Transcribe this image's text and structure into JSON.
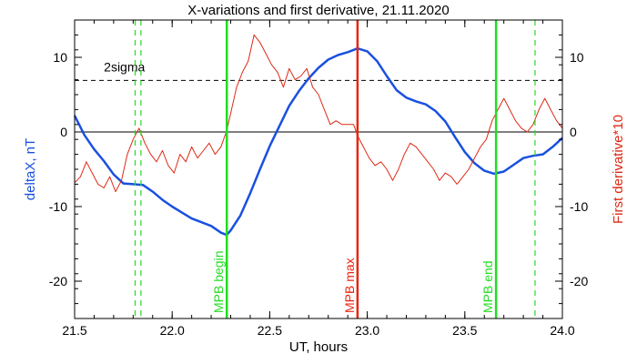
{
  "chart_data": {
    "type": "line",
    "title": "X-variations and first derivative, 21.11.2020",
    "xlabel": "UT, hours",
    "ylabel_left": "deltaX, nT",
    "ylabel_right": "First derivative*10",
    "xlim": [
      21.5,
      24.0
    ],
    "ylim": [
      -25,
      15
    ],
    "x_ticks": [
      "21.5",
      "22.0",
      "22.5",
      "23.0",
      "23.5",
      "24.0"
    ],
    "x_tick_values": [
      21.5,
      22.0,
      22.5,
      23.0,
      23.5,
      24.0
    ],
    "y_ticks": [
      "10",
      "0",
      "-10",
      "-20"
    ],
    "y_tick_values": [
      10,
      0,
      -10,
      -20
    ],
    "grid": false,
    "colors": {
      "series_deltaX": "#1a50e0",
      "series_derivative": "#dd2a14",
      "mpb": "#22dd22",
      "mpb_max": "#e8250f",
      "axes": "#000000"
    },
    "series": [
      {
        "key": "deltaX",
        "axis": "left",
        "values": [
          [
            21.5,
            2.2
          ],
          [
            21.55,
            -0.4
          ],
          [
            21.6,
            -2.3
          ],
          [
            21.65,
            -3.9
          ],
          [
            21.7,
            -5.7
          ],
          [
            21.75,
            -6.9
          ],
          [
            21.8,
            -7.0
          ],
          [
            21.85,
            -7.1
          ],
          [
            21.9,
            -8.0
          ],
          [
            21.95,
            -9.1
          ],
          [
            22.0,
            -10.0
          ],
          [
            22.05,
            -10.8
          ],
          [
            22.1,
            -11.6
          ],
          [
            22.15,
            -12.1
          ],
          [
            22.2,
            -12.6
          ],
          [
            22.25,
            -13.5
          ],
          [
            22.28,
            -13.8
          ],
          [
            22.3,
            -13.2
          ],
          [
            22.35,
            -11.2
          ],
          [
            22.4,
            -8.2
          ],
          [
            22.45,
            -5.0
          ],
          [
            22.5,
            -1.9
          ],
          [
            22.55,
            0.8
          ],
          [
            22.6,
            3.5
          ],
          [
            22.65,
            5.5
          ],
          [
            22.7,
            7.2
          ],
          [
            22.75,
            8.6
          ],
          [
            22.8,
            9.7
          ],
          [
            22.85,
            10.3
          ],
          [
            22.9,
            10.7
          ],
          [
            22.95,
            11.2
          ],
          [
            23.0,
            10.8
          ],
          [
            23.05,
            9.5
          ],
          [
            23.1,
            7.5
          ],
          [
            23.15,
            5.6
          ],
          [
            23.2,
            4.6
          ],
          [
            23.25,
            4.1
          ],
          [
            23.3,
            3.7
          ],
          [
            23.35,
            2.8
          ],
          [
            23.4,
            1.4
          ],
          [
            23.45,
            -0.7
          ],
          [
            23.5,
            -2.7
          ],
          [
            23.55,
            -4.2
          ],
          [
            23.6,
            -5.2
          ],
          [
            23.65,
            -5.6
          ],
          [
            23.7,
            -5.3
          ],
          [
            23.75,
            -4.4
          ],
          [
            23.8,
            -3.5
          ],
          [
            23.85,
            -3.2
          ],
          [
            23.9,
            -3.0
          ],
          [
            23.95,
            -2.0
          ],
          [
            24.0,
            -0.8
          ]
        ]
      },
      {
        "key": "derivative",
        "axis": "right",
        "values": [
          [
            21.5,
            -6.8
          ],
          [
            21.53,
            -6.0
          ],
          [
            21.56,
            -4.0
          ],
          [
            21.59,
            -5.5
          ],
          [
            21.62,
            -7.0
          ],
          [
            21.65,
            -7.5
          ],
          [
            21.68,
            -6.0
          ],
          [
            21.71,
            -8.0
          ],
          [
            21.74,
            -6.5
          ],
          [
            21.77,
            -3.0
          ],
          [
            21.8,
            -1.0
          ],
          [
            21.83,
            0.5
          ],
          [
            21.86,
            -1.5
          ],
          [
            21.89,
            -3.0
          ],
          [
            21.92,
            -4.0
          ],
          [
            21.95,
            -2.5
          ],
          [
            21.98,
            -4.5
          ],
          [
            22.01,
            -5.5
          ],
          [
            22.04,
            -3.0
          ],
          [
            22.07,
            -4.0
          ],
          [
            22.1,
            -2.0
          ],
          [
            22.13,
            -3.5
          ],
          [
            22.16,
            -2.5
          ],
          [
            22.19,
            -1.5
          ],
          [
            22.22,
            -3.0
          ],
          [
            22.25,
            -2.0
          ],
          [
            22.28,
            0.2
          ],
          [
            22.3,
            2.5
          ],
          [
            22.33,
            6.0
          ],
          [
            22.36,
            8.0
          ],
          [
            22.39,
            9.5
          ],
          [
            22.42,
            13.0
          ],
          [
            22.45,
            12.0
          ],
          [
            22.48,
            10.5
          ],
          [
            22.51,
            9.0
          ],
          [
            22.54,
            8.0
          ],
          [
            22.57,
            6.0
          ],
          [
            22.6,
            8.5
          ],
          [
            22.63,
            7.0
          ],
          [
            22.66,
            7.5
          ],
          [
            22.69,
            8.5
          ],
          [
            22.72,
            6.0
          ],
          [
            22.75,
            5.0
          ],
          [
            22.78,
            3.0
          ],
          [
            22.81,
            1.0
          ],
          [
            22.84,
            1.5
          ],
          [
            22.87,
            1.0
          ],
          [
            22.9,
            1.0
          ],
          [
            22.93,
            1.0
          ],
          [
            22.95,
            -0.5
          ],
          [
            22.98,
            -2.0
          ],
          [
            23.01,
            -3.5
          ],
          [
            23.04,
            -4.5
          ],
          [
            23.07,
            -4.0
          ],
          [
            23.1,
            -5.0
          ],
          [
            23.13,
            -6.5
          ],
          [
            23.16,
            -5.0
          ],
          [
            23.19,
            -3.0
          ],
          [
            23.22,
            -1.5
          ],
          [
            23.25,
            -2.0
          ],
          [
            23.28,
            -3.0
          ],
          [
            23.31,
            -4.0
          ],
          [
            23.34,
            -5.0
          ],
          [
            23.37,
            -6.5
          ],
          [
            23.4,
            -5.5
          ],
          [
            23.43,
            -6.0
          ],
          [
            23.46,
            -7.0
          ],
          [
            23.49,
            -6.0
          ],
          [
            23.52,
            -5.0
          ],
          [
            23.55,
            -3.5
          ],
          [
            23.58,
            -2.0
          ],
          [
            23.61,
            -1.0
          ],
          [
            23.64,
            1.5
          ],
          [
            23.67,
            3.0
          ],
          [
            23.7,
            4.5
          ],
          [
            23.73,
            3.0
          ],
          [
            23.76,
            1.5
          ],
          [
            23.79,
            0.5
          ],
          [
            23.82,
            0.0
          ],
          [
            23.85,
            1.0
          ],
          [
            23.88,
            3.0
          ],
          [
            23.91,
            4.5
          ],
          [
            23.94,
            3.0
          ],
          [
            23.97,
            1.5
          ],
          [
            24.0,
            0.5
          ]
        ]
      }
    ],
    "reference_lines": {
      "zero": 0,
      "two_sigma": {
        "label": "2sigma",
        "value": 6.9
      }
    },
    "markers": [
      {
        "label": "",
        "x": 21.81,
        "style": "dashed",
        "color_key": "mpb"
      },
      {
        "label": "",
        "x": 21.84,
        "style": "dashed",
        "color_key": "mpb"
      },
      {
        "label": "MPB begin",
        "x": 22.28,
        "style": "solid",
        "color_key": "mpb"
      },
      {
        "label": "MPB max",
        "x": 22.95,
        "style": "solid",
        "color_key": "mpb_max"
      },
      {
        "label": "MPB end",
        "x": 23.66,
        "style": "solid",
        "color_key": "mpb"
      },
      {
        "label": "",
        "x": 23.86,
        "style": "dashed",
        "color_key": "mpb"
      }
    ]
  }
}
